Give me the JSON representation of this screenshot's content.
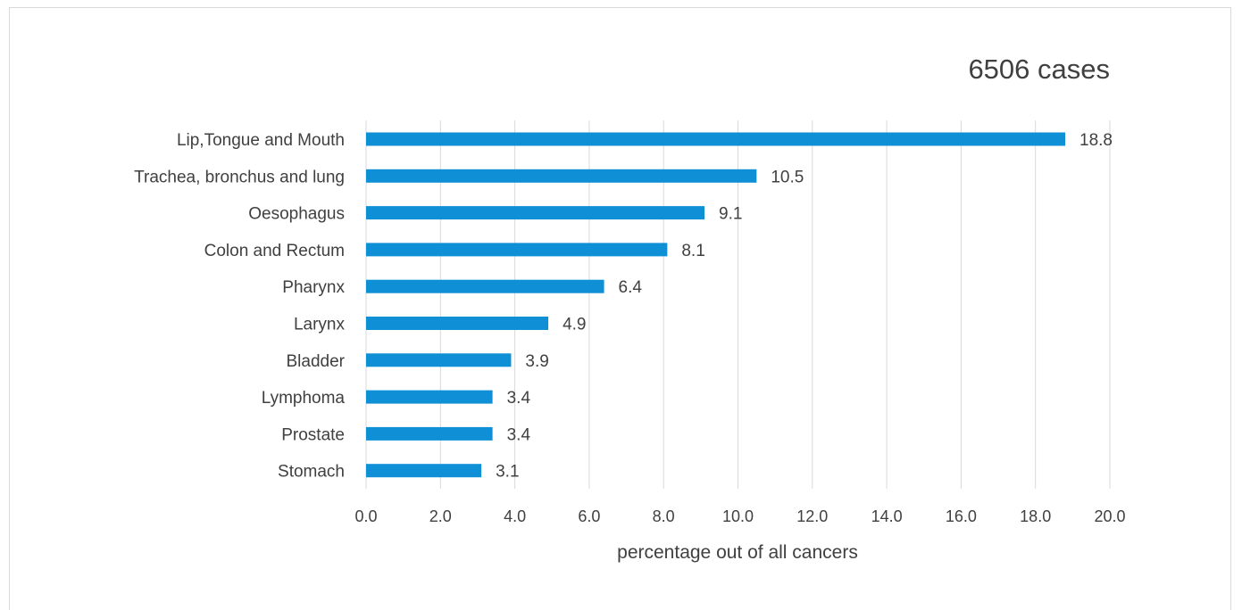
{
  "chart_data": {
    "type": "bar",
    "orientation": "horizontal",
    "title": "6506 cases",
    "xlabel": "percentage out of all cancers",
    "ylabel": "",
    "xlim": [
      0,
      20
    ],
    "xticks": [
      "0.0",
      "2.0",
      "4.0",
      "6.0",
      "8.0",
      "10.0",
      "12.0",
      "14.0",
      "16.0",
      "18.0",
      "20.0"
    ],
    "grid": "vertical",
    "bar_color": "#0F8FD6",
    "categories": [
      "Lip,Tongue and Mouth",
      "Trachea, bronchus and lung",
      "Oesophagus",
      "Colon and Rectum",
      "Pharynx",
      "Larynx",
      "Bladder",
      "Lymphoma",
      "Prostate",
      "Stomach"
    ],
    "values": [
      18.8,
      10.5,
      9.1,
      8.1,
      6.4,
      4.9,
      3.9,
      3.4,
      3.4,
      3.1
    ],
    "value_labels": [
      "18.8",
      "10.5",
      "9.1",
      "8.1",
      "6.4",
      "4.9",
      "3.9",
      "3.4",
      "3.4",
      "3.1"
    ]
  }
}
